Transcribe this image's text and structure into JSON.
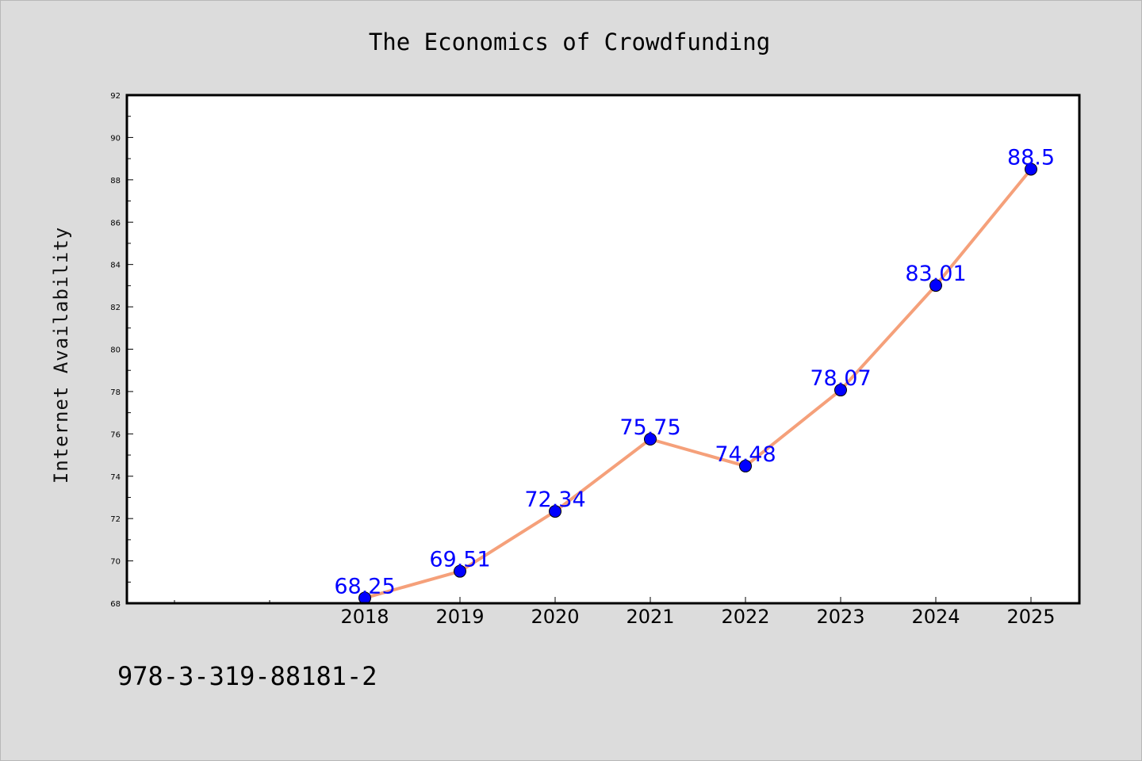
{
  "chart_data": {
    "type": "line",
    "title": "The Economics of Crowdfunding",
    "xlabel": "",
    "ylabel": "Internet Availability",
    "categories": [
      "2018",
      "2019",
      "2020",
      "2021",
      "2022",
      "2023",
      "2024",
      "2025"
    ],
    "series": [
      {
        "values": [
          68.25,
          69.51,
          72.34,
          75.75,
          74.48,
          78.07,
          83.01,
          88.5
        ]
      }
    ],
    "data_labels": [
      "68.25",
      "69.51",
      "72.34",
      "75.75",
      "74.48",
      "78.07",
      "83.01",
      "88.5"
    ],
    "ylim": [
      68,
      92
    ],
    "yticks": [
      68,
      70,
      72,
      74,
      76,
      78,
      80,
      82,
      84,
      86,
      88,
      90,
      92
    ],
    "grid": false,
    "legend": "none",
    "colors": {
      "line": "#f5a07a",
      "marker": "#0000ff",
      "label": "#0000ff",
      "background": "#dcdcdc",
      "plot_area": "#ffffff"
    }
  },
  "footer": {
    "code": "978-3-319-88181-2"
  }
}
